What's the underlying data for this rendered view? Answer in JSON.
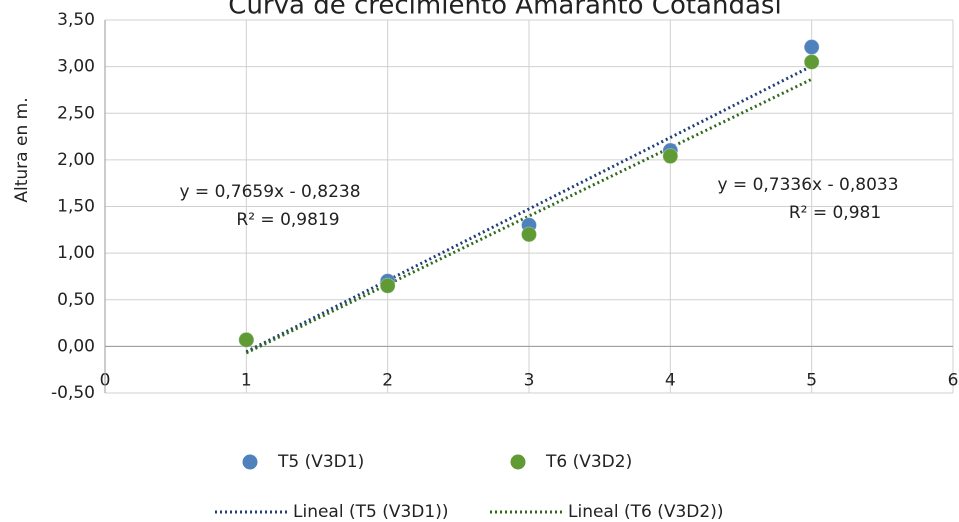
{
  "chart_data": {
    "type": "scatter",
    "title": "Curva de crecimiento Amaranto Cotandasi",
    "y_label": "Altura en m.",
    "x": [
      1,
      2,
      3,
      4,
      5
    ],
    "series": [
      {
        "name": "T5 (V3D1)",
        "color": "#4f81bd",
        "values": [
          0.07,
          0.7,
          1.3,
          2.1,
          3.21
        ]
      },
      {
        "name": "T6 (V3D2)",
        "color": "#5f9a35",
        "values": [
          0.07,
          0.65,
          1.2,
          2.04,
          3.05
        ]
      }
    ],
    "trendlines": [
      {
        "name": "Lineal (T5 (V3D1))",
        "color": "#1f3f7a",
        "slope": 0.7659,
        "intercept": -0.8238,
        "x_range": [
          1,
          5
        ],
        "equation": "y = 0,7659x - 0,8238",
        "r2": "R² = 0,9819"
      },
      {
        "name": "Lineal (T6 (V3D2))",
        "color": "#2f6a1c",
        "slope": 0.7336,
        "intercept": -0.8033,
        "x_range": [
          1,
          5
        ],
        "equation": "y = 0,7336x - 0,8033",
        "r2": "R² = 0,981"
      }
    ],
    "xlim": [
      0,
      6
    ],
    "xticks": [
      0,
      1,
      2,
      3,
      4,
      5,
      6
    ],
    "ylim": [
      -0.5,
      3.5
    ],
    "yticks": [
      {
        "value": -0.5,
        "label": "-0,50"
      },
      {
        "value": 0,
        "label": "0,00"
      },
      {
        "value": 0.5,
        "label": "0,50"
      },
      {
        "value": 1,
        "label": "1,00"
      },
      {
        "value": 1.5,
        "label": "1,50"
      },
      {
        "value": 2,
        "label": "2,00"
      },
      {
        "value": 2.5,
        "label": "2,50"
      },
      {
        "value": 3,
        "label": "3,00"
      },
      {
        "value": 3.5,
        "label": "3,50"
      }
    ],
    "grid": true,
    "legend": "bottom"
  }
}
